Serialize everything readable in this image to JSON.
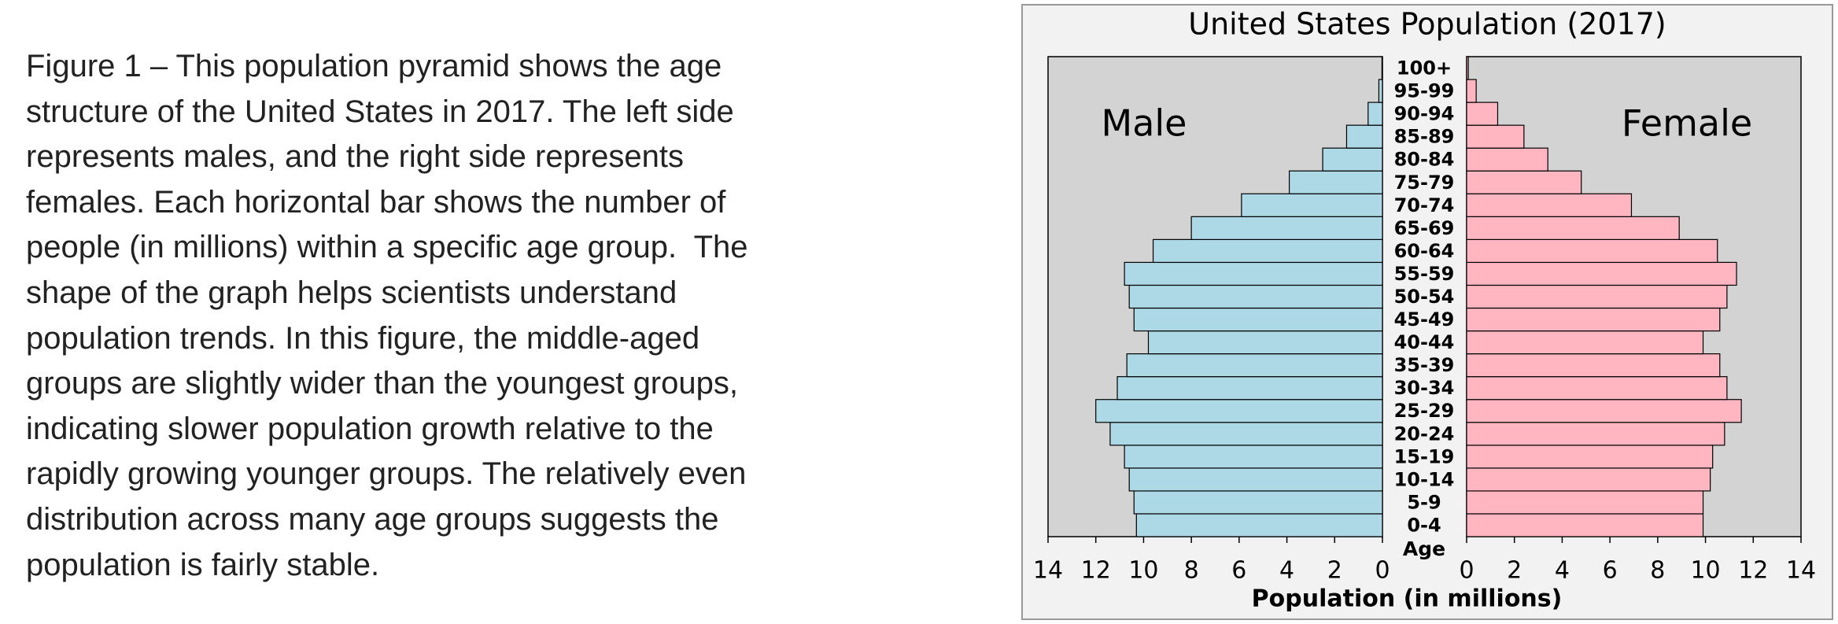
{
  "paragraph_lines": [
    "Figure 1 – This population pyramid shows the age",
    "structure of the United States in 2017. The left side",
    "represents males, and the right side represents",
    "females. Each horizontal bar shows the number of",
    "people (in millions) within a specific age group.  The",
    "shape of the graph helps scientists understand",
    "population trends. In this figure, the middle-aged",
    "groups are slightly wider than the youngest groups,",
    "indicating slower population growth relative to the",
    "rapidly growing younger groups. The relatively even",
    "distribution across many age groups suggests the",
    "population is fairly stable."
  ],
  "chart_data": {
    "type": "pyramid",
    "title": "United States Population (2017)",
    "categories": [
      "0-4",
      "5-9",
      "10-14",
      "15-19",
      "20-24",
      "25-29",
      "30-34",
      "35-39",
      "40-44",
      "45-49",
      "50-54",
      "55-59",
      "60-64",
      "65-69",
      "70-74",
      "75-79",
      "80-84",
      "85-89",
      "90-94",
      "95-99",
      "100+"
    ],
    "category_axis_label": "Age",
    "series": [
      {
        "name": "Male",
        "color": "#add8e6",
        "values": [
          10.3,
          10.4,
          10.6,
          10.8,
          11.4,
          12.0,
          11.1,
          10.7,
          9.8,
          10.4,
          10.6,
          10.8,
          9.6,
          8.0,
          5.9,
          3.9,
          2.5,
          1.5,
          0.6,
          0.15,
          0.02
        ]
      },
      {
        "name": "Female",
        "color": "#ffb6c1",
        "values": [
          9.9,
          9.9,
          10.2,
          10.3,
          10.8,
          11.5,
          10.9,
          10.6,
          9.9,
          10.6,
          10.9,
          11.3,
          10.5,
          8.9,
          6.9,
          4.8,
          3.4,
          2.4,
          1.3,
          0.4,
          0.07
        ]
      }
    ],
    "xlabel": "Population (in millions)",
    "xlim": [
      0,
      14
    ],
    "xticks": [
      0,
      2,
      4,
      6,
      8,
      10,
      12,
      14
    ],
    "grid": false
  }
}
